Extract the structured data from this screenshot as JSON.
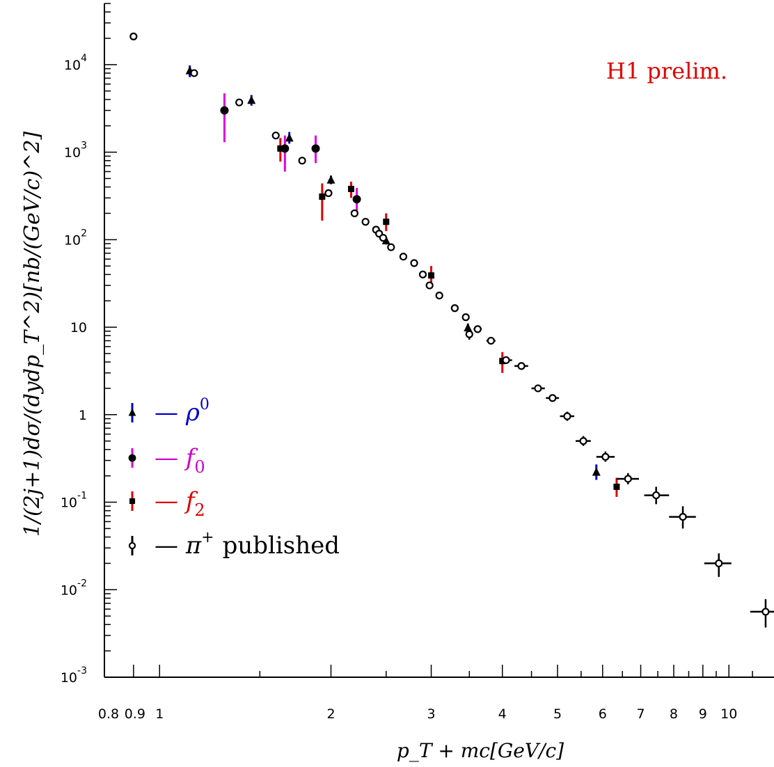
{
  "chart_data": {
    "type": "scatter",
    "title": "",
    "annotation": "H1 prelim.",
    "xlabel": "p_T + mc[GeV/c]",
    "ylabel": "1/(2j+1)dσ/(dydp_T^2)[nb/(GeV/c)^2]",
    "xscale": "log",
    "yscale": "log",
    "xlim": [
      0.8,
      12.0
    ],
    "ylim": [
      0.001,
      50000
    ],
    "grid": false,
    "legend_position": "left-center",
    "x_tick_labels": [
      "0.8",
      "0.9",
      "1",
      "2",
      "3",
      "4",
      "5",
      "6",
      "7",
      "8",
      "9",
      "10"
    ],
    "y_tick_labels": [
      {
        "value": 0.001,
        "base": "10",
        "exp": "-3"
      },
      {
        "value": 0.01,
        "base": "10",
        "exp": "-2"
      },
      {
        "value": 0.1,
        "base": "10",
        "exp": "-1"
      },
      {
        "value": 1,
        "base": "1",
        "exp": ""
      },
      {
        "value": 10,
        "base": "10",
        "exp": ""
      },
      {
        "value": 100,
        "base": "10",
        "exp": "2"
      },
      {
        "value": 1000,
        "base": "10",
        "exp": "3"
      },
      {
        "value": 10000,
        "base": "10",
        "exp": "4"
      }
    ],
    "series": [
      {
        "name": "ρ0",
        "legend_symbol": "ρ",
        "legend_sup": "0",
        "legend_sub": "",
        "marker": "triangle",
        "error_color": "#0000cc",
        "label_color": "#0000cc",
        "points": [
          {
            "x": 1.13,
            "y": 8500,
            "ylo": 7200,
            "yhi": 9800
          },
          {
            "x": 1.45,
            "y": 3900,
            "ylo": 3400,
            "yhi": 4500
          },
          {
            "x": 1.69,
            "y": 1450,
            "ylo": 1250,
            "yhi": 1700
          },
          {
            "x": 2.0,
            "y": 480,
            "ylo": 430,
            "yhi": 540
          },
          {
            "x": 2.5,
            "y": 97,
            "ylo": 88,
            "yhi": 107
          },
          {
            "x": 3.48,
            "y": 9.8,
            "ylo": 8.8,
            "yhi": 11
          },
          {
            "x": 5.85,
            "y": 0.22,
            "ylo": 0.18,
            "yhi": 0.27
          }
        ]
      },
      {
        "name": "f0",
        "legend_symbol": "f",
        "legend_sup": "",
        "legend_sub": "0",
        "marker": "circle",
        "error_color": "#e000e0",
        "label_color": "#cc00cc",
        "points": [
          {
            "x": 1.3,
            "y": 3000,
            "ylo": 1300,
            "yhi": 4700
          },
          {
            "x": 1.66,
            "y": 1100,
            "ylo": 600,
            "yhi": 1550
          },
          {
            "x": 1.88,
            "y": 1100,
            "ylo": 750,
            "yhi": 1550
          },
          {
            "x": 2.22,
            "y": 290,
            "ylo": 190,
            "yhi": 390
          }
        ]
      },
      {
        "name": "f2",
        "legend_symbol": "f",
        "legend_sup": "",
        "legend_sub": "2",
        "marker": "square",
        "error_color": "#e00000",
        "label_color": "#e00000",
        "points": [
          {
            "x": 1.63,
            "y": 1100,
            "ylo": 780,
            "yhi": 1450
          },
          {
            "x": 1.93,
            "y": 310,
            "ylo": 165,
            "yhi": 440
          },
          {
            "x": 2.17,
            "y": 380,
            "ylo": 300,
            "yhi": 460
          },
          {
            "x": 2.5,
            "y": 160,
            "ylo": 125,
            "yhi": 200
          },
          {
            "x": 3.0,
            "y": 39,
            "ylo": 30,
            "yhi": 50
          },
          {
            "x": 4.0,
            "y": 4.1,
            "ylo": 3.0,
            "yhi": 5.2
          },
          {
            "x": 6.35,
            "y": 0.15,
            "ylo": 0.115,
            "yhi": 0.19
          }
        ]
      },
      {
        "name": "π+ published",
        "legend_symbol": "π",
        "legend_sup": "+",
        "legend_sub": "",
        "legend_suffix": "published",
        "marker": "open-circle",
        "error_color": "#000000",
        "label_color": "#000000",
        "points": [
          {
            "x": 0.9,
            "y": 21000
          },
          {
            "x": 1.15,
            "y": 8000
          },
          {
            "x": 1.38,
            "y": 3700
          },
          {
            "x": 1.6,
            "y": 1550
          },
          {
            "x": 1.78,
            "y": 800
          },
          {
            "x": 1.98,
            "y": 340
          },
          {
            "x": 2.2,
            "y": 200
          },
          {
            "x": 2.3,
            "y": 160
          },
          {
            "x": 2.4,
            "y": 130
          },
          {
            "x": 2.43,
            "y": 117
          },
          {
            "x": 2.47,
            "y": 105
          },
          {
            "x": 2.55,
            "y": 82
          },
          {
            "x": 2.68,
            "y": 64
          },
          {
            "x": 2.8,
            "y": 54
          },
          {
            "x": 2.9,
            "y": 40,
            "xlo": 2.87,
            "xhi": 2.93
          },
          {
            "x": 2.98,
            "y": 30
          },
          {
            "x": 3.1,
            "y": 23,
            "xlo": 3.06,
            "xhi": 3.14
          },
          {
            "x": 3.3,
            "y": 16.5,
            "xlo": 3.25,
            "xhi": 3.35
          },
          {
            "x": 3.45,
            "y": 13,
            "xlo": 3.4,
            "xhi": 3.5
          },
          {
            "x": 3.5,
            "y": 8.3,
            "ylo": 7.2,
            "yhi": 9.5,
            "xlo": 3.46,
            "xhi": 3.54
          },
          {
            "x": 3.62,
            "y": 9.5,
            "xlo": 3.56,
            "xhi": 3.68
          },
          {
            "x": 3.82,
            "y": 7.0,
            "xlo": 3.75,
            "xhi": 3.89
          },
          {
            "x": 4.06,
            "y": 4.2,
            "xlo": 3.96,
            "xhi": 4.16
          },
          {
            "x": 4.32,
            "y": 3.6,
            "xlo": 4.2,
            "xhi": 4.44
          },
          {
            "x": 4.62,
            "y": 2.0,
            "xlo": 4.5,
            "xhi": 4.75
          },
          {
            "x": 4.9,
            "y": 1.55,
            "xlo": 4.77,
            "xhi": 5.03
          },
          {
            "x": 5.2,
            "y": 0.96,
            "ylo": 0.85,
            "yhi": 1.08,
            "xlo": 5.05,
            "xhi": 5.35
          },
          {
            "x": 5.55,
            "y": 0.5,
            "ylo": 0.44,
            "yhi": 0.57,
            "xlo": 5.38,
            "xhi": 5.72
          },
          {
            "x": 6.07,
            "y": 0.33,
            "ylo": 0.29,
            "yhi": 0.38,
            "xlo": 5.85,
            "xhi": 6.3
          },
          {
            "x": 6.65,
            "y": 0.185,
            "ylo": 0.16,
            "yhi": 0.215,
            "xlo": 6.35,
            "xhi": 6.95
          },
          {
            "x": 7.45,
            "y": 0.12,
            "ylo": 0.095,
            "yhi": 0.15,
            "xlo": 7.1,
            "xhi": 7.85
          },
          {
            "x": 8.3,
            "y": 0.068,
            "ylo": 0.05,
            "yhi": 0.09,
            "xlo": 7.85,
            "xhi": 8.75
          },
          {
            "x": 9.6,
            "y": 0.02,
            "ylo": 0.014,
            "yhi": 0.026,
            "xlo": 9.05,
            "xhi": 10.1
          },
          {
            "x": 11.6,
            "y": 0.0056,
            "ylo": 0.0037,
            "yhi": 0.0078,
            "xlo": 10.9,
            "xhi": 12.2
          }
        ]
      }
    ]
  }
}
